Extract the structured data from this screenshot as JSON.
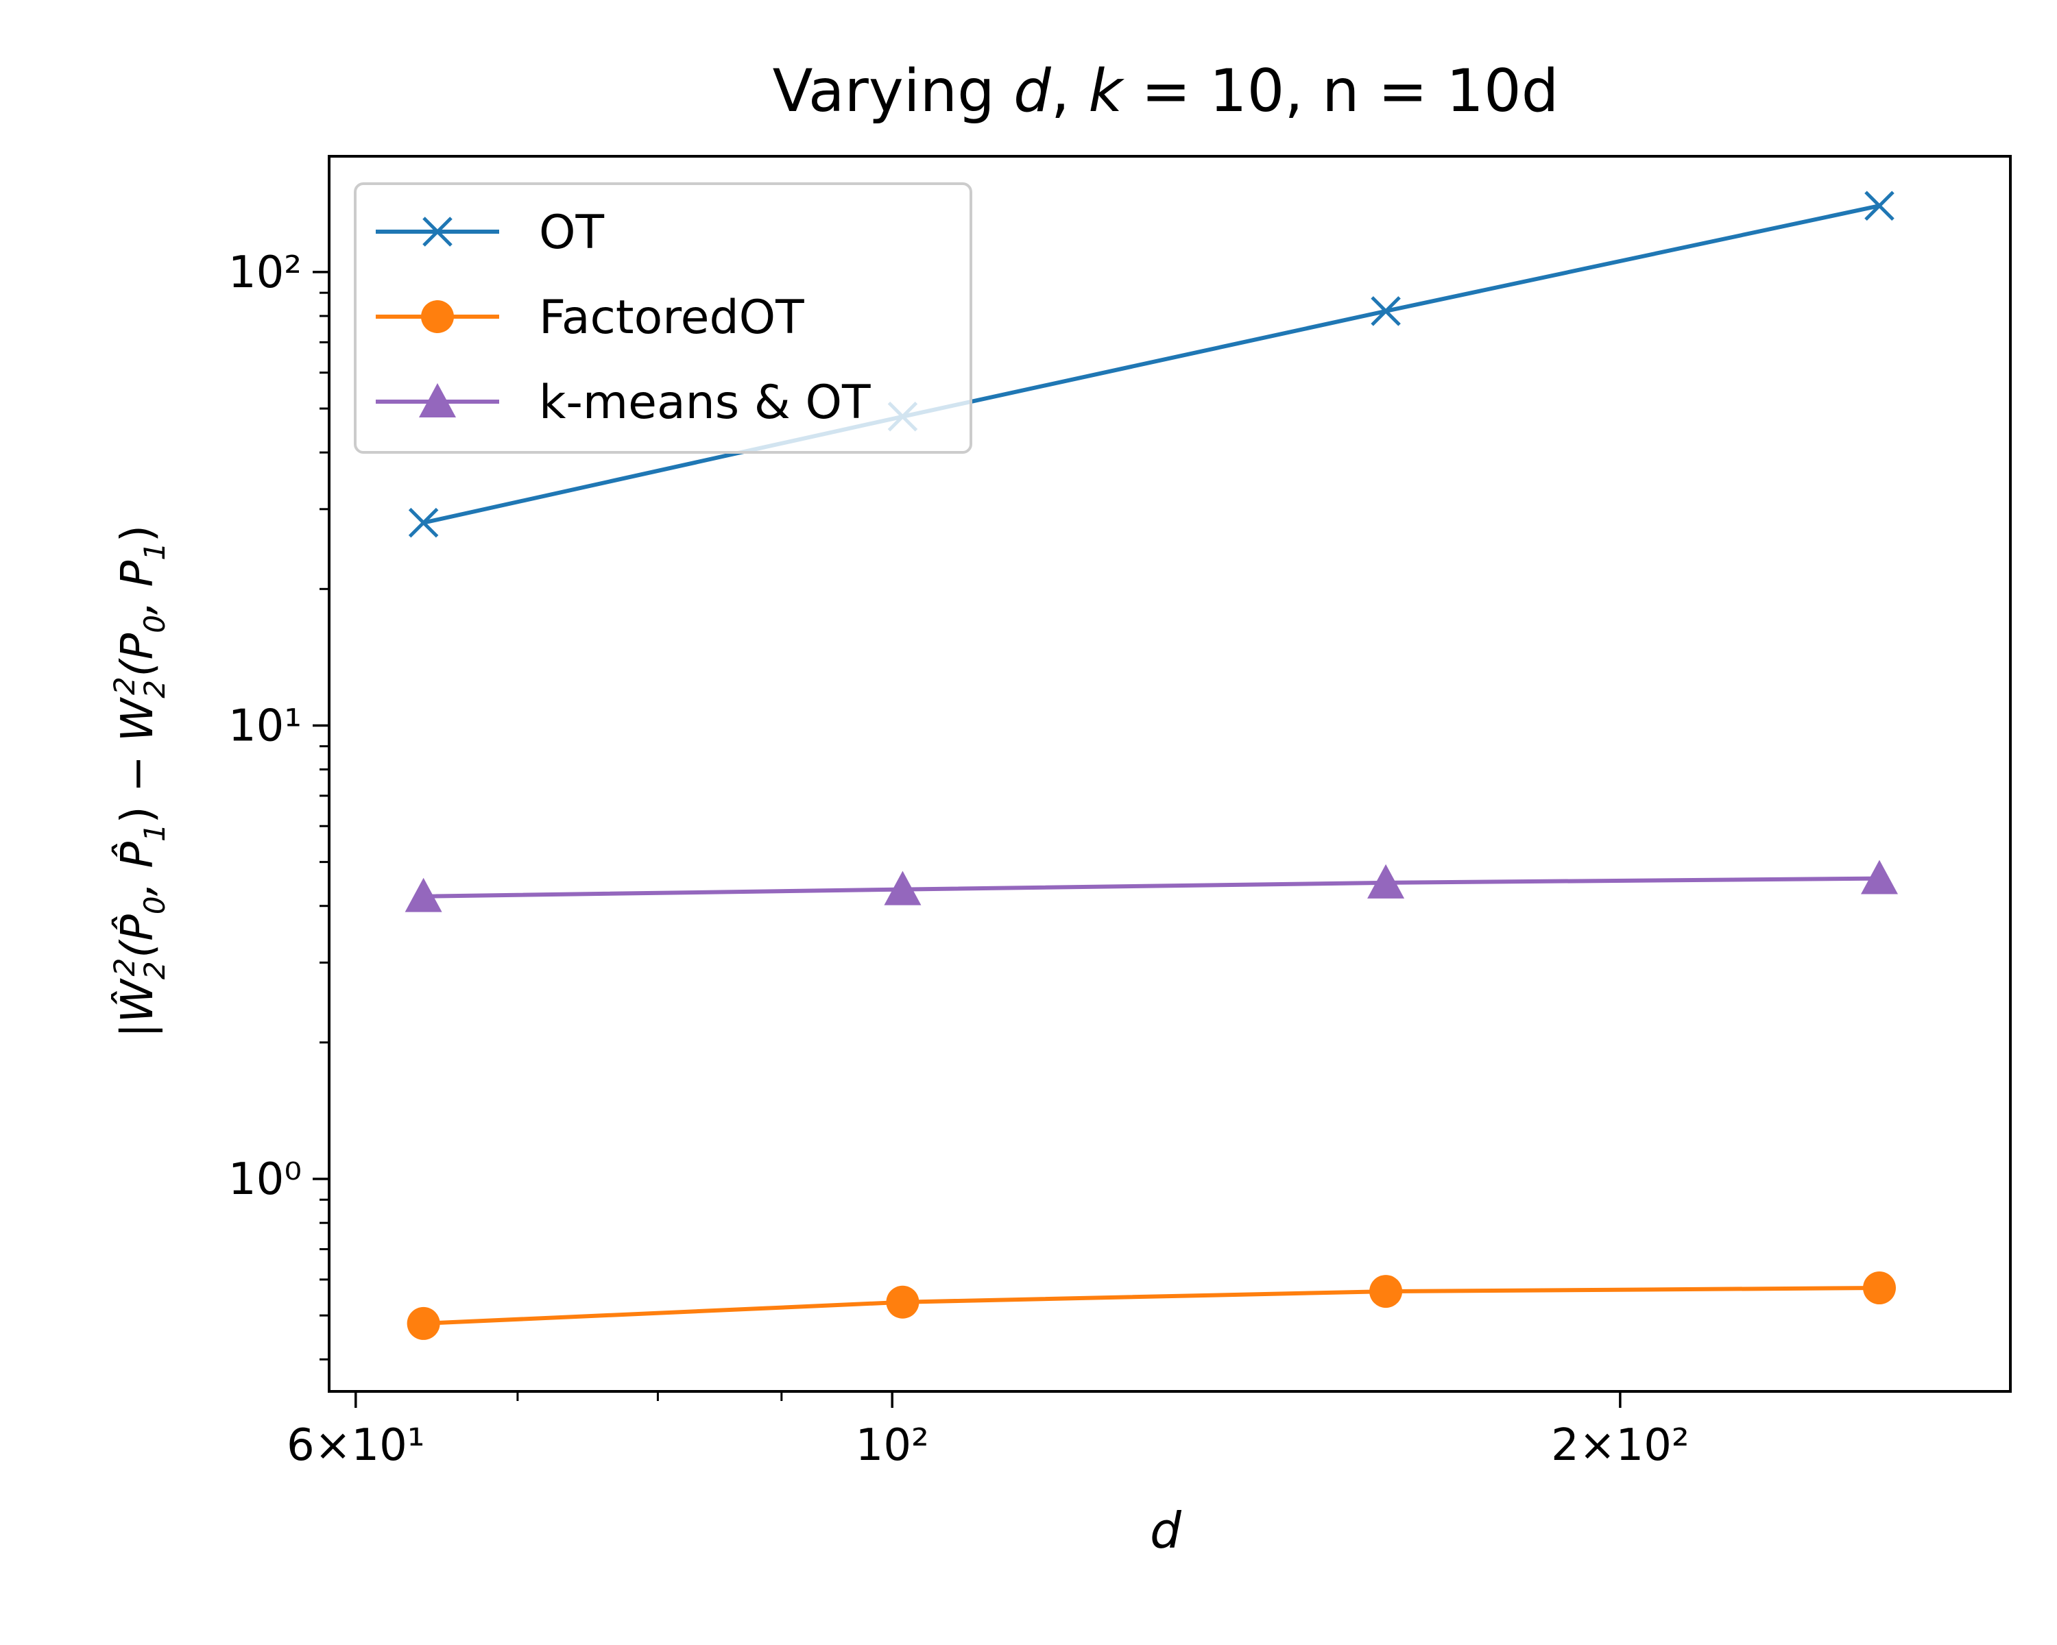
{
  "chart_data": {
    "type": "line",
    "title": "Varying d, k = 10, n = 10d",
    "xlabel": "d",
    "ylabel": "|Ŵ₂²(P̂₀, P̂₁) − W₂²(P₀, P₁)|",
    "xscale": "log",
    "yscale": "log",
    "xlim": [
      58.5,
      290
    ],
    "ylim": [
      0.34,
      180
    ],
    "x": [
      64,
      101,
      160,
      256
    ],
    "series": [
      {
        "name": "OT",
        "color": "#1f77b4",
        "marker": "x",
        "values": [
          28,
          48,
          82,
          140
        ]
      },
      {
        "name": "FactoredOT",
        "color": "#ff7f0e",
        "marker": "circle",
        "values": [
          0.48,
          0.535,
          0.565,
          0.575
        ]
      },
      {
        "name": "k-means & OT",
        "color": "#9467bd",
        "marker": "triangle",
        "values": [
          4.2,
          4.35,
          4.5,
          4.6
        ]
      }
    ],
    "x_ticks": [
      {
        "value": 60,
        "label": "6×10¹"
      },
      {
        "value": 100,
        "label": "10²"
      },
      {
        "value": 200,
        "label": "2×10²"
      }
    ],
    "y_ticks": [
      {
        "value": 1,
        "label": "10⁰"
      },
      {
        "value": 10,
        "label": "10¹"
      },
      {
        "value": 100,
        "label": "10²"
      }
    ],
    "legend": "top-left",
    "grid": false
  }
}
